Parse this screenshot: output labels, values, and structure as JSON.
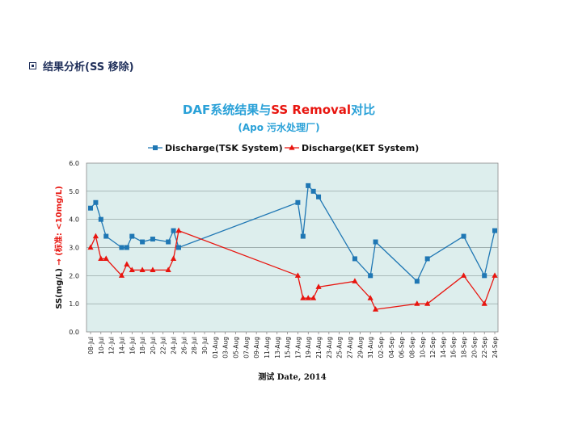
{
  "heading": {
    "text": "结果分析(SS 移除)"
  },
  "colors": {
    "tsk": "#1f77b4",
    "ket": "#e8150f",
    "title_blue": "#2aa1d8",
    "title_red": "#e8150f",
    "plot_bg": "#ddeeed"
  },
  "chart_data": {
    "type": "line",
    "title_parts": [
      {
        "text": "DAF系统结果与",
        "color": "#2aa1d8"
      },
      {
        "text": "SS Removal",
        "color": "#e8150f"
      },
      {
        "text": "对比",
        "color": "#2aa1d8"
      }
    ],
    "subtitle": "(Apo 污水处理厂)",
    "xlabel": "测试 Date, 2014",
    "ylabel_parts": [
      {
        "text": "SS(mg/L)",
        "color": "#111111"
      },
      {
        "text": " → (标准: <10mg/L)",
        "color": "#e8150f"
      }
    ],
    "ylim": [
      0,
      6
    ],
    "yticks": [
      "0.0",
      "1.0",
      "2.0",
      "3.0",
      "4.0",
      "5.0",
      "6.0"
    ],
    "xlim": [
      8,
      86
    ],
    "xticks": [
      {
        "day": 8,
        "label": "08-Jul"
      },
      {
        "day": 10,
        "label": "10-Jul"
      },
      {
        "day": 12,
        "label": "12-Jul"
      },
      {
        "day": 14,
        "label": "14-Jul"
      },
      {
        "day": 16,
        "label": "16-Jul"
      },
      {
        "day": 18,
        "label": "18-Jul"
      },
      {
        "day": 20,
        "label": "20-Jul"
      },
      {
        "day": 22,
        "label": "22-Jul"
      },
      {
        "day": 24,
        "label": "24-Jul"
      },
      {
        "day": 26,
        "label": "26-Jul"
      },
      {
        "day": 28,
        "label": "28-Jul"
      },
      {
        "day": 30,
        "label": "30-Jul"
      },
      {
        "day": 32,
        "label": "01-Aug"
      },
      {
        "day": 34,
        "label": "03-Aug"
      },
      {
        "day": 36,
        "label": "05-Aug"
      },
      {
        "day": 38,
        "label": "07-Aug"
      },
      {
        "day": 40,
        "label": "09-Aug"
      },
      {
        "day": 42,
        "label": "11-Aug"
      },
      {
        "day": 44,
        "label": "13-Aug"
      },
      {
        "day": 46,
        "label": "15-Aug"
      },
      {
        "day": 48,
        "label": "17-Aug"
      },
      {
        "day": 50,
        "label": "19-Aug"
      },
      {
        "day": 52,
        "label": "21-Aug"
      },
      {
        "day": 54,
        "label": "23-Aug"
      },
      {
        "day": 56,
        "label": "25-Aug"
      },
      {
        "day": 58,
        "label": "27-Aug"
      },
      {
        "day": 60,
        "label": "29-Aug"
      },
      {
        "day": 62,
        "label": "31-Aug"
      },
      {
        "day": 64,
        "label": "02-Sep"
      },
      {
        "day": 66,
        "label": "04-Sep"
      },
      {
        "day": 68,
        "label": "06-Sep"
      },
      {
        "day": 70,
        "label": "08-Sep"
      },
      {
        "day": 72,
        "label": "10-Sep"
      },
      {
        "day": 74,
        "label": "12-Sep"
      },
      {
        "day": 76,
        "label": "14-Sep"
      },
      {
        "day": 78,
        "label": "16-Sep"
      },
      {
        "day": 80,
        "label": "18-Sep"
      },
      {
        "day": 82,
        "label": "20-Sep"
      },
      {
        "day": 84,
        "label": "22-Sep"
      },
      {
        "day": 86,
        "label": "24-Sep"
      }
    ],
    "grid": true,
    "legend_position": "top",
    "series": [
      {
        "name": "Discharge(TSK System)",
        "marker": "square",
        "color": "#1f77b4",
        "points": [
          {
            "day": 8,
            "y": 4.4
          },
          {
            "day": 9,
            "y": 4.6
          },
          {
            "day": 10,
            "y": 4.0
          },
          {
            "day": 11,
            "y": 3.4
          },
          {
            "day": 14,
            "y": 3.0
          },
          {
            "day": 15,
            "y": 3.0
          },
          {
            "day": 16,
            "y": 3.4
          },
          {
            "day": 18,
            "y": 3.2
          },
          {
            "day": 20,
            "y": 3.3
          },
          {
            "day": 23,
            "y": 3.2
          },
          {
            "day": 24,
            "y": 3.6
          },
          {
            "day": 25,
            "y": 3.0
          },
          {
            "day": 48,
            "y": 4.6
          },
          {
            "day": 49,
            "y": 3.4
          },
          {
            "day": 50,
            "y": 5.2
          },
          {
            "day": 51,
            "y": 5.0
          },
          {
            "day": 52,
            "y": 4.8
          },
          {
            "day": 59,
            "y": 2.6
          },
          {
            "day": 62,
            "y": 2.0
          },
          {
            "day": 63,
            "y": 3.2
          },
          {
            "day": 71,
            "y": 1.8
          },
          {
            "day": 73,
            "y": 2.6
          },
          {
            "day": 80,
            "y": 3.4
          },
          {
            "day": 84,
            "y": 2.0
          },
          {
            "day": 86,
            "y": 3.6
          }
        ]
      },
      {
        "name": "Discharge(KET System)",
        "marker": "triangle",
        "color": "#e8150f",
        "points": [
          {
            "day": 8,
            "y": 3.0
          },
          {
            "day": 9,
            "y": 3.4
          },
          {
            "day": 10,
            "y": 2.6
          },
          {
            "day": 11,
            "y": 2.6
          },
          {
            "day": 14,
            "y": 2.0
          },
          {
            "day": 15,
            "y": 2.4
          },
          {
            "day": 16,
            "y": 2.2
          },
          {
            "day": 18,
            "y": 2.2
          },
          {
            "day": 20,
            "y": 2.2
          },
          {
            "day": 23,
            "y": 2.2
          },
          {
            "day": 24,
            "y": 2.6
          },
          {
            "day": 25,
            "y": 3.6
          },
          {
            "day": 48,
            "y": 2.0
          },
          {
            "day": 49,
            "y": 1.2
          },
          {
            "day": 50,
            "y": 1.2
          },
          {
            "day": 51,
            "y": 1.2
          },
          {
            "day": 52,
            "y": 1.6
          },
          {
            "day": 59,
            "y": 1.8
          },
          {
            "day": 62,
            "y": 1.2
          },
          {
            "day": 63,
            "y": 0.8
          },
          {
            "day": 71,
            "y": 1.0
          },
          {
            "day": 73,
            "y": 1.0
          },
          {
            "day": 80,
            "y": 2.0
          },
          {
            "day": 84,
            "y": 1.0
          },
          {
            "day": 86,
            "y": 2.0
          }
        ]
      }
    ]
  }
}
